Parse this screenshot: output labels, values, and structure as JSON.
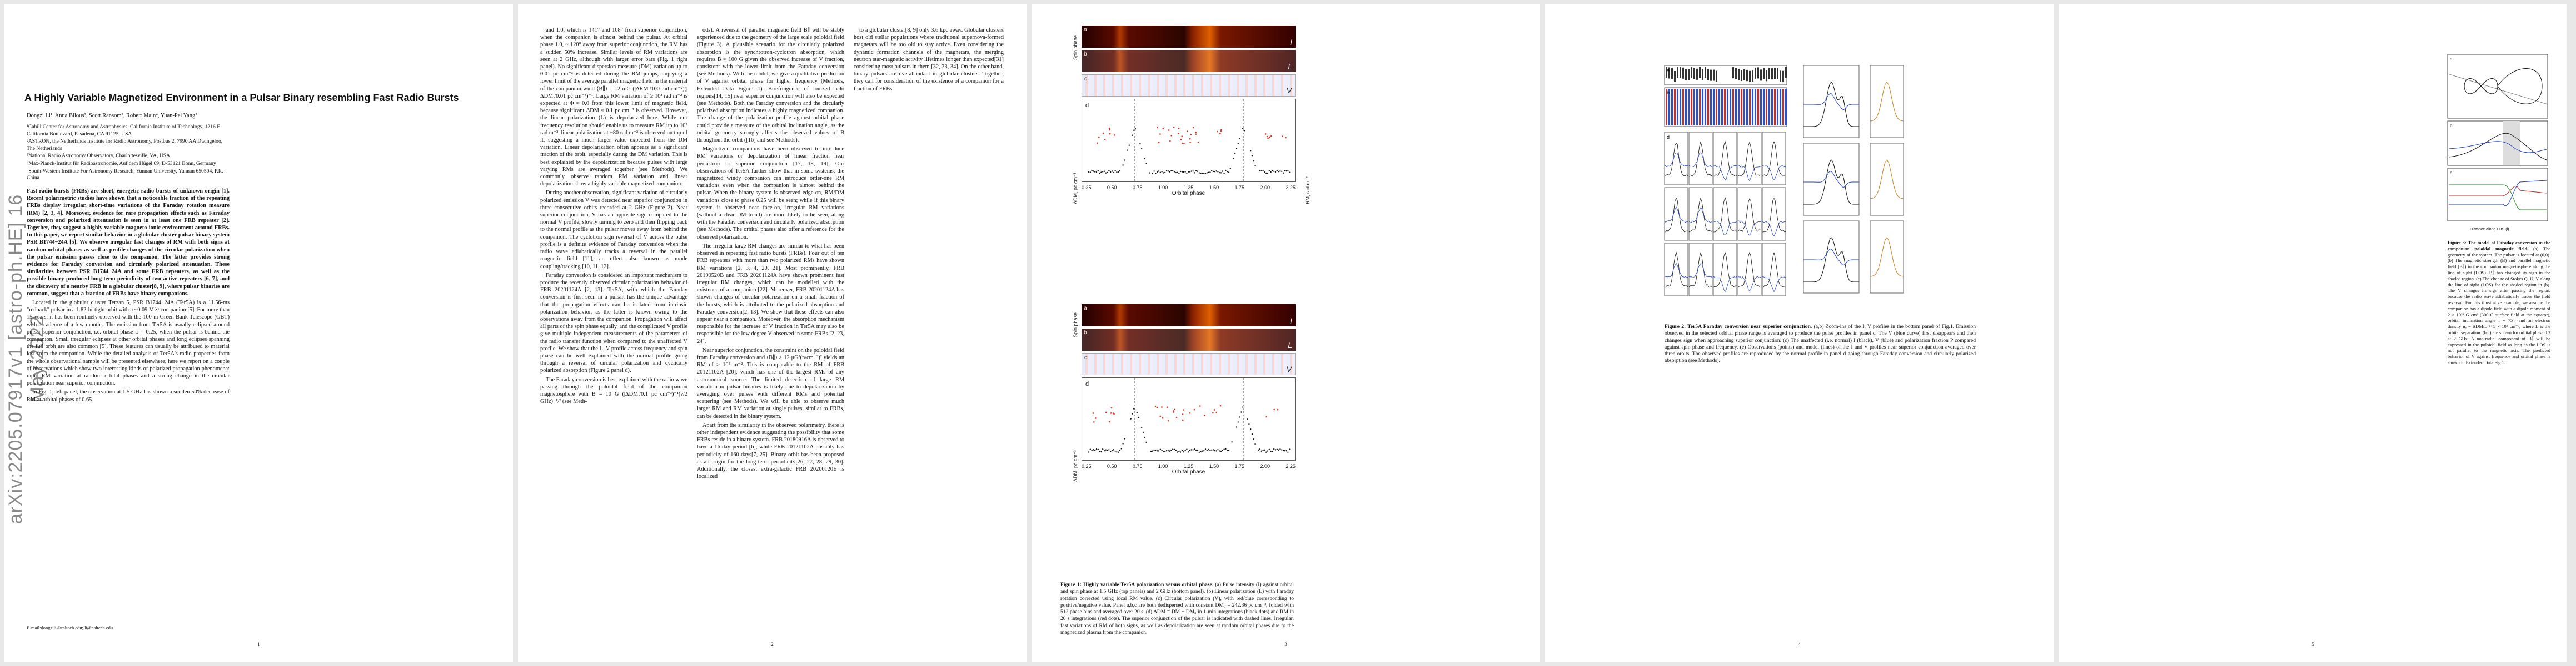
{
  "arxiv_stamp": "arXiv:2205.07917v1  [astro-ph.HE]  16 May 2022",
  "page1": {
    "title": "A Highly Variable Magnetized Environment in a Pulsar Binary resembling Fast Radio Bursts",
    "authors": "Dongzi Li¹, Anna Bilous², Scott Ransom³, Robert Main⁴, Yuan-Pei Yang⁵",
    "affiliations": [
      "¹Cahill Center for Astronomy and Astrophysics, California Institute of Technology, 1216 E California Boulevard, Pasadena, CA 91125, USA",
      "²ASTRON, the Netherlands Institute for Radio Astronomy, Postbus 2, 7990 AA Dwingeloo, The Netherlands",
      "³National Radio Astronomy Observatory, Charlottesville, VA, USA",
      "⁴Max-Planck-Institut für Radioastronomie, Auf dem Hügel 69, D-53121 Bonn, Germany",
      "⁵South-Western Institute For Astronomy Research, Yunnan University, Yunnan 650504, P.R. China"
    ],
    "abstract": "Fast radio bursts (FRBs) are short, energetic radio bursts of unknown origin [1]. Recent polarimetric studies have shown that a noticeable fraction of the repeating FRBs display irregular, short-time variations of the Faraday rotation measure (RM) [2, 3, 4]. Moreover, evidence for rare propagation effects such as Faraday conversion and polarized attenuation is seen in at least one FRB repeater [2]. Together, they suggest a highly variable magneto-ionic environment around FRBs. In this paper, we report similar behavior in a globular cluster pulsar binary system PSR B1744−24A [5]. We observe irregular fast changes of RM with both signs at random orbital phases as well as profile changes of the circular polarization when the pulsar emission passes close to the companion. The latter provides strong evidence for Faraday conversion and circularly polarized attenuation. These similarities between PSR B1744−24A and some FRB repeaters, as well as the possible binary-produced long-term periodicity of two active repeaters [6, 7], and the discovery of a nearby FRB in a globular cluster[8, 9], where pulsar binaries are common, suggest that a fraction of FRBs have binary companions.",
    "body": [
      "Located in the globular cluster Terzan 5, PSR B1744−24A (Ter5A) is a 11.56-ms \"redback\" pulsar in a 1.82-hr tight orbit with a ~0.09 M☉ companion [5]. For more than 15 years, it has been routinely observed with the 100-m Green Bank Telescope (GBT) with a cadence of a few months. The emission from Ter5A is usually eclipsed around pulsar superior conjunction, i.e. orbital phase φ = 0.25, when the pulsar is behind the companion. Small irregular eclipses at other orbital phases and long eclipses spanning the full orbit are also common [5]. These features can usually be attributed to material lost from the companion. While the detailed analysis of Ter5A's radio properties from the whole observational sample will be presented elsewhere, here we report on a couple of observations which show two interesting kinds of polarized propagation phenomena: rapid RM variation at random orbital phases and a strong change in the circular polarization near superior conjunction.",
      "In Fig. 1, left panel, the observation at 1.5 GHz has shown a sudden 50% decrease of RM at orbital phases of 0.65"
    ],
    "footnote": "E-mail:dongzili@caltech.edu; li@caltech.edu",
    "page_number": "1"
  },
  "page2": {
    "col1": [
      "and 1.0, which is 141° and 108° from superior conjunction, when the companion is almost behind the pulsar. At orbital phase 1.0, ~ 120° away from superior conjunction, the RM has a sudden 50% increase. Similar levels of RM variations are seen at 2 GHz, although with larger error bars (Fig. 1 right panel). No significant dispersion measure (DM) variation up to 0.01 pc cm⁻³ is detected during the RM jumps, implying a lower limit of the average parallel magnetic field in the material of the companion wind ⟨B∥⟩ = 12 mG (|ΔRM|/100 rad cm⁻²)(|ΔDM|/0.01 pc cm⁻³)⁻¹. Large RM variation of ≥ 10³ rad m⁻² is expected at Φ ≈ 0.0 from this lower limit of magnetic field, because significant ΔDM ≈ 0.1 pc cm⁻³ is observed. However, the linear polarization (L) is depolarized here. While our frequency resolution should enable us to measure RM up to 10⁵ rad m⁻², linear polarization at ~80 rad m⁻² is observed on top of it, suggesting a much larger value expected from the DM variation. Linear depolarization often appears as a significant fraction of the orbit, especially during the DM variation. This is best explained by the depolarization because pulses with large varying RMs are averaged together (see Methods). We commonly observe random RM variation and linear depolarization show a highly variable magnetized companion.",
      "During another observation, significant variation of circularly polarized emission V was detected near superior conjunction in three consecutive orbits recorded at 2 GHz (Figure 2). Near superior conjunction, V has an opposite sign compared to the normal V profile, slowly turning to zero and then flipping back to the normal profile as the pulsar moves away from behind the companion. The cyclotron sign reversal of V across the pulse profile is a definite evidence of Faraday conversion when the radio wave adiabatically tracks a reversal in the parallel magnetic field [11], an effect also known as mode coupling/tracking [10, 11, 12].",
      "Faraday conversion is considered an important mechanism to produce the recently observed circular polarization behavior of FRB 20201124A [2, 13]. Ter5A, with which the Faraday conversion is first seen in a pulsar, has the unique advantage that the propagation effects can be isolated from intrinsic polarization behavior, as the latter is known owing to the observations away from the companion. Propagation will affect all parts of the spin phase equally, and the complicated V profile give multiple independent measurements of the parameters of the radio transfer function when compared to the unaffected V profile. We show that the L, V profile across frequency and spin phase can be well explained with the normal profile going through a reversal of circular polarization and cyclically polarized absorption (Figure 2 panel d).",
      "The Faraday conversion is best explained with the radio wave passing through the poloidal field of the companion magnetosphere with B = 10 G (|ΔDM|/0.1 pc cm⁻³)⁻¹(ν/2 GHz)⁻¹/² (see Meth-"
    ],
    "col2": [
      "ods). A reversal of parallel magnetic field B∥ will be stably experienced due to the geometry of the large scale poloidal field (Figure 3). A plausible scenario for the circularly polarized absorption is the synchrotron-cyclotron absorption, which requires B ≈ 100 G given the observed increase of V fraction, consistent with the lower limit from the Faraday conversion (see Methods). With the model, we give a qualitative prediction of V against orbital phase for higher frequency (Methods, Extended Data Figure 1). Birefringence of ionized halo regions[14, 15] near superior conjunction will also be expected (see Methods). Both the Faraday conversion and the circularly polarized absorption indicates a highly magnetized companion. The change of the polarization profile against orbital phase could provide a measure of the orbital inclination angle, as the orbital geometry strongly affects the observed values of B throughout the orbit ([16] and see Methods).",
      "Magnetized companions have been observed to introduce RM variations or depolarization of linear fraction near periastron or superior conjunction [17, 18, 19]. Our observations of Ter5A further show that in some systems, the magnetized windy companion can introduce order-one RM variations even when the companion is almost behind the pulsar. When the binary system is observed edge-on, RM/DM variations close to phase 0.25 will be seen; while if this binary system is observed near face-on, irregular RM variations (without a clear DM trend) are more likely to be seen, along with the Faraday conversion and circularly polarized absorption (see Methods). The orbital phases also offer a reference for the observed polarization.",
      "The irregular large RM changes are similar to what has been observed in repeating fast radio bursts (FRBs). Four out of ten FRB repeaters with more than two polarized RMs have shown RM variations [2, 3, 4, 20, 21]. Most prominently, FRB 20190520B and FRB 20201124A have shown prominent fast irregular RM changes, which can be modelled with the existence of a companion [22]. Moreover, FRB 20201124A has shown changes of circular polarization on a small fraction of the bursts, which is attributed to the polarized absorption and Faraday conversion[2, 13]. We show that these effects can also appear near a companion. Moreover, the absorption mechanism responsible for the increase of V fraction in Ter5A may also be responsible for the low degree V observed in some FRBs [2, 23, 24].",
      "Near superior conjunction, the constraint on the poloidal field from Faraday conversion and ⟨B∥⟩ ≥ 12 μG²(n/cm⁻³)² yields an RM of ≥ 10⁴ m⁻². This is comparable to the RM of FRB 20121102A [20], which has one of the largest RMs of any astronomical source. The limited detection of large RM variation in pulsar binaries is likely due to depolarization by averaging over pulses with different RMs and potential scattering (see Methods). We will be able to observe much larger RM and RM variation at single pulses, similar to FRBs, can be detected in the binary system.",
      "Apart from the similarity in the observed polarimetry, there is other independent evidence suggesting the possibility that some FRBs reside in a binary system. FRB 20180916A is observed to have a 16-day period [6], while FRB 20121102A possibly has periodicity of 160 days[7, 25]. Binary orbit has been proposed as an origin for the long-term periodicity[26, 27, 28, 29, 30]. Additionally, the closest extra-galactic FRB 20200120E is localized"
    ],
    "col3": [
      "to a globular cluster[8, 9] only 3.6 kpc away. Globular clusters host old stellar populations where traditional supernova-formed magnetars will be too old to stay active. Even considering the dynamic formation channels of the magnetars, the merging neutron star-magnetic activity lifetimes longer than expected[31] considering most pulsars in them [32, 33, 34]. On the other hand, binary pulsars are overabundant in globular clusters. Together, they call for consideration of the existence of a companion for a fraction of FRBs."
    ],
    "page_number": "2"
  },
  "page3": {
    "panel_labels": [
      "a",
      "b",
      "c",
      "d"
    ],
    "corner_labels": [
      "I",
      "L",
      "V"
    ],
    "yaxis_spin": "Spin phase",
    "yaxis_dm": "ΔDM, pc cm⁻³",
    "yaxis_rm": "RM, rad m⁻²",
    "xaxis_orbital": "Orbital phase",
    "x_ticks": [
      "0.25",
      "0.50",
      "0.75",
      "1.00",
      "1.25",
      "1.50",
      "1.75",
      "2.00",
      "2.25"
    ],
    "caption_title": "Figure 1: Highly variable Ter5A polarization versus orbital phase.",
    "caption": "(a) Pulse intensity (I) against orbital and spin phase at 1.5 GHz (top panels) and 2 GHz (bottom panel). (b) Linear polarization (L) with Faraday rotation corrected using local RM value. (c) Circular polarization (V), with red/blue corresponding to positive/negative value. Panel a,b,c are both dedispersed with constant DM₀ = 242.36 pc cm⁻³, folded with 512 phase bins and averaged over 20 s. (d) ΔDM = DM − DM₀ in 1-min integrations (black dots) and RM in 20 s integrations (red dots). The superior conjunction of the pulsar is indicated with dashed lines. Irregular, fast variations of RM of both signs, as well as depolarization are seen at random orbital phases due to the magnetized plasma from the companion.",
    "page_number": "3"
  },
  "page4": {
    "top_labels": [
      "orbital phase",
      "0.08",
      "0.14",
      "0.20",
      "0.30",
      "0.44"
    ],
    "panel_labels": [
      "a",
      "b",
      "c",
      "d"
    ],
    "legend": [
      "I (model)",
      "L (model)",
      "V (model)"
    ],
    "caption_title": "Figure 2: Ter5A Faraday conversion near superior conjunction.",
    "caption": "(a,b) Zoom-ins of the I, V profiles in the bottom panel of Fig.1. Emission observed in the selected orbital phase range is averaged to produce the pulse profiles in panel c. The V (blue curve) first disappears and then changes sign when approaching superior conjunction. (c) The unaffected (i.e. normal) I (black), V (blue) and polarization fraction P compared against spin phase and frequency. (e) Observations (points) and model (lines) of the I and V profiles near superior conjunction averaged over three orbits. The observed profiles are reproduced by the normal profile in panel d going through Faraday conversion and circularly polarized absorption (see Methods).",
    "page_number": "4"
  },
  "page5": {
    "panel_labels": [
      "a",
      "b",
      "c"
    ],
    "caption_title": "Figure 3: The model of Faraday conversion in the companion poloidal magnetic field.",
    "caption": "(a) The geometry of the system. The pulsar is located at (0,0). (b) The magnetic strength (B) and parallel magnetic field (B∥) in the companion magnetosphere along the line of sight (LOS). B∥ has changed its sign in the shaded region. (c) The change of Stokes Q, U, V along the line of sight (LOS) for the shaded region in (b). The V changes its sign after passing the region, because the radio wave adiabatically traces the field reversal. For this illustrative example, we assume the companion has a dipole field with a dipole moment of 2 × 10²⁹ G cm³ (300 G surface field at the equator), orbital inclination angle i = 75°, and an electron density nₑ = ΔDM/L ≈ 5 × 10⁸ cm⁻³, where L is the orbital separation. (b,c) are shown for orbital phase 0.3 at 2 GHz. A non-radial component of B∥ will be expressed in the poloidal field as long as the LOS is not parallel to the magnetic axis. The predicted behavior of V against frequency and orbital phase is shown in Extended Data Fig 1.",
    "ylabels": [
      "B",
      "B∥",
      "Stokes"
    ],
    "xlabel": "Distance along LOS (l)",
    "page_number": "5"
  },
  "colors": {
    "heat_dark": "#3a0600",
    "heat_bright": "#ff9a20",
    "rm_red": "#e03020",
    "v_blue": "#2040c0",
    "link_blue": "#1a3aa0"
  }
}
